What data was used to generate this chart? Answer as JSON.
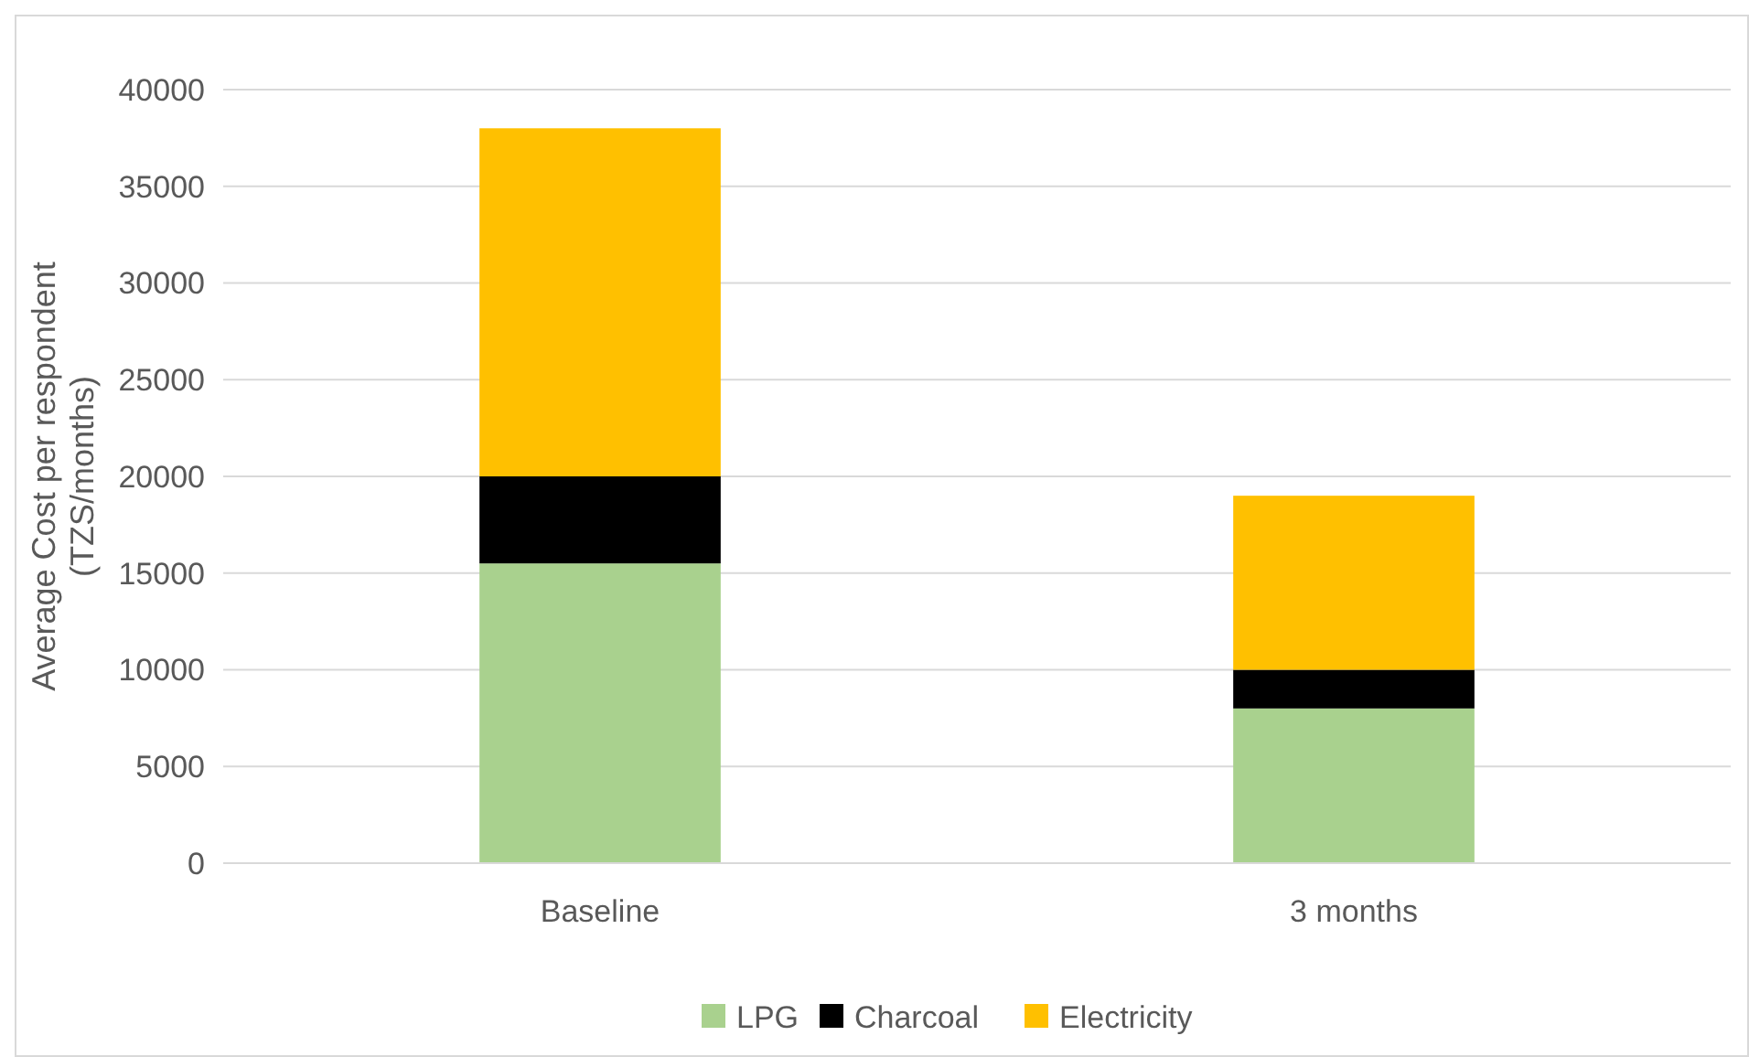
{
  "chart_data": {
    "type": "bar",
    "stacked": true,
    "ylabel": "Average Cost per respondent (TZS/months)",
    "categories": [
      "Baseline",
      "3 months"
    ],
    "series": [
      {
        "name": "LPG",
        "color": "#a9d18e",
        "values": [
          15500,
          8000
        ]
      },
      {
        "name": "Charcoal",
        "color": "#000000",
        "values": [
          4500,
          2000
        ]
      },
      {
        "name": "Electricity",
        "color": "#ffc000",
        "values": [
          18000,
          9000
        ]
      }
    ],
    "ylim": [
      0,
      40000
    ],
    "yticks": [
      0,
      5000,
      10000,
      15000,
      20000,
      25000,
      30000,
      35000,
      40000
    ],
    "grid": "y",
    "legend": "bottom"
  }
}
